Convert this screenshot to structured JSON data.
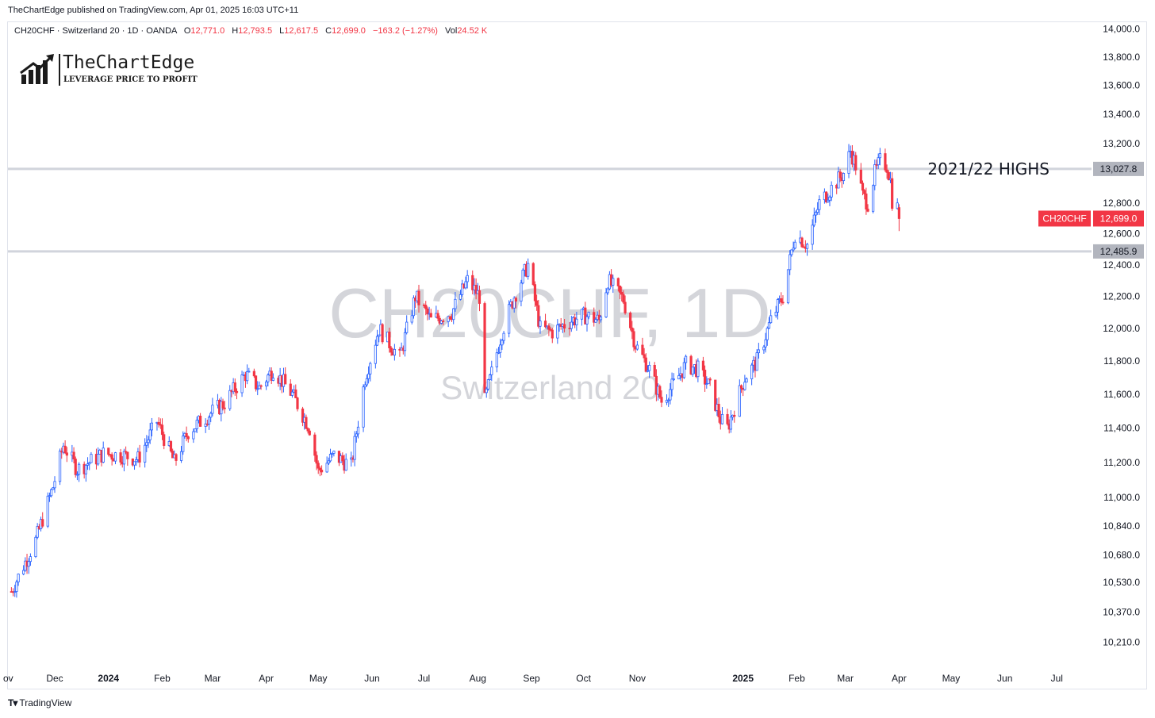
{
  "header": {
    "published": "TheChartEdge published on TradingView.com, Apr 01, 2025 16:03 UTC+11"
  },
  "legend": {
    "symbol": "CH20CHF · Switzerland 20 · 1D · OANDA",
    "o_label": "O",
    "o_value": "12,771.0",
    "h_label": "H",
    "h_value": "12,793.5",
    "l_label": "L",
    "l_value": "12,617.5",
    "c_label": "C",
    "c_value": "12,699.0",
    "change": "−163.2 (−1.27%)",
    "vol_label": "Vol",
    "vol_value": "24.52 K"
  },
  "logo": {
    "name": "TheChartEdge",
    "tagline": "LEVERAGE PRICE TO PROFIT",
    "icon": "bar-chart-arrow-icon"
  },
  "watermark": {
    "symbol": "CH20CHF, 1D",
    "name": "Switzerland 20"
  },
  "footer": {
    "brand": "TradingView",
    "icon": "tradingview-logo-icon"
  },
  "colors": {
    "up": "#2962ff",
    "down": "#f23645",
    "level_line": "#d1d4dc",
    "level_tag_bg": "#b2b5be",
    "price_tag_bg": "#f23645"
  },
  "chart_data": {
    "type": "candlestick",
    "symbol": "CH20CHF",
    "timeframe": "1D",
    "y_ticks": [
      "14,000.0",
      "13,800.0",
      "13,600.0",
      "13,400.0",
      "13,200.0",
      "12,800.0",
      "12,600.0",
      "12,400.0",
      "12,200.0",
      "12,000.0",
      "11,800.0",
      "11,600.0",
      "11,400.0",
      "11,200.0",
      "11,000.0",
      "10,840.0",
      "10,680.0",
      "10,530.0",
      "10,370.0",
      "10,210.0"
    ],
    "y_tick_values": [
      14000,
      13800,
      13600,
      13400,
      13200,
      12800,
      12600,
      12400,
      12200,
      12000,
      11800,
      11600,
      11400,
      11200,
      11000,
      10840,
      10680,
      10530,
      10370,
      10210
    ],
    "x_ticks": [
      {
        "label": "ov",
        "date": "2023-11-06",
        "bold": false
      },
      {
        "label": "Dec",
        "date": "2023-12-01",
        "bold": false
      },
      {
        "label": "2024",
        "date": "2024-01-01",
        "bold": true
      },
      {
        "label": "Feb",
        "date": "2024-02-01",
        "bold": false
      },
      {
        "label": "Mar",
        "date": "2024-03-01",
        "bold": false
      },
      {
        "label": "Apr",
        "date": "2024-04-01",
        "bold": false
      },
      {
        "label": "May",
        "date": "2024-05-01",
        "bold": false
      },
      {
        "label": "Jun",
        "date": "2024-06-01",
        "bold": false
      },
      {
        "label": "Jul",
        "date": "2024-07-01",
        "bold": false
      },
      {
        "label": "Aug",
        "date": "2024-08-01",
        "bold": false
      },
      {
        "label": "Sep",
        "date": "2024-09-01",
        "bold": false
      },
      {
        "label": "Oct",
        "date": "2024-10-01",
        "bold": false
      },
      {
        "label": "Nov",
        "date": "2024-11-01",
        "bold": false
      },
      {
        "label": "2025",
        "date": "2025-01-01",
        "bold": true
      },
      {
        "label": "Feb",
        "date": "2025-02-01",
        "bold": false
      },
      {
        "label": "Mar",
        "date": "2025-03-01",
        "bold": false
      },
      {
        "label": "Apr",
        "date": "2025-04-01",
        "bold": false
      },
      {
        "label": "May",
        "date": "2025-05-01",
        "bold": false
      },
      {
        "label": "Jun",
        "date": "2025-06-01",
        "bold": false
      },
      {
        "label": "Jul",
        "date": "2025-07-01",
        "bold": false
      }
    ],
    "levels": [
      {
        "value": 13027.8,
        "label": "13,027.8",
        "annotation": "2021/22 HIGHS"
      },
      {
        "value": 12485.9,
        "label": "12,485.9",
        "annotation": ""
      }
    ],
    "last_price": {
      "value": 12699.0,
      "label": "12,699.0",
      "symbol_tag": "CH20CHF"
    },
    "price_path": [
      [
        "2023-11-06",
        10480
      ],
      [
        "2023-11-20",
        10760
      ],
      [
        "2023-11-30",
        11060
      ],
      [
        "2023-12-06",
        11300
      ],
      [
        "2023-12-14",
        11160
      ],
      [
        "2023-12-29",
        11250
      ],
      [
        "2024-01-10",
        11240
      ],
      [
        "2024-01-18",
        11220
      ],
      [
        "2024-01-29",
        11440
      ],
      [
        "2024-02-08",
        11200
      ],
      [
        "2024-02-16",
        11380
      ],
      [
        "2024-02-28",
        11480
      ],
      [
        "2024-03-08",
        11550
      ],
      [
        "2024-03-20",
        11720
      ],
      [
        "2024-03-28",
        11640
      ],
      [
        "2024-04-05",
        11750
      ],
      [
        "2024-04-16",
        11600
      ],
      [
        "2024-04-26",
        11400
      ],
      [
        "2024-05-01",
        11150
      ],
      [
        "2024-05-10",
        11240
      ],
      [
        "2024-05-20",
        11180
      ],
      [
        "2024-05-28",
        11700
      ],
      [
        "2024-06-05",
        12000
      ],
      [
        "2024-06-17",
        11820
      ],
      [
        "2024-06-26",
        12200
      ],
      [
        "2024-07-05",
        12050
      ],
      [
        "2024-07-17",
        12100
      ],
      [
        "2024-07-26",
        12300
      ],
      [
        "2024-08-02",
        12200
      ],
      [
        "2024-08-05",
        11560
      ],
      [
        "2024-08-15",
        11980
      ],
      [
        "2024-08-22",
        12200
      ],
      [
        "2024-08-30",
        12400
      ],
      [
        "2024-09-06",
        12000
      ],
      [
        "2024-09-13",
        11980
      ],
      [
        "2024-09-24",
        12050
      ],
      [
        "2024-10-02",
        12080
      ],
      [
        "2024-10-10",
        12050
      ],
      [
        "2024-10-15",
        12300
      ],
      [
        "2024-10-24",
        12180
      ],
      [
        "2024-10-31",
        11900
      ],
      [
        "2024-11-08",
        11750
      ],
      [
        "2024-11-15",
        11560
      ],
      [
        "2024-11-22",
        11660
      ],
      [
        "2024-11-29",
        11780
      ],
      [
        "2024-12-06",
        11750
      ],
      [
        "2024-12-13",
        11640
      ],
      [
        "2024-12-19",
        11450
      ],
      [
        "2024-12-23",
        11400
      ],
      [
        "2025-01-02",
        11700
      ],
      [
        "2025-01-09",
        11800
      ],
      [
        "2025-01-17",
        12050
      ],
      [
        "2025-01-24",
        12200
      ],
      [
        "2025-01-31",
        12600
      ],
      [
        "2025-02-07",
        12530
      ],
      [
        "2025-02-14",
        12800
      ],
      [
        "2025-02-21",
        12900
      ],
      [
        "2025-02-28",
        13000
      ],
      [
        "2025-03-04",
        13150
      ],
      [
        "2025-03-07",
        13050
      ],
      [
        "2025-03-11",
        12850
      ],
      [
        "2025-03-14",
        12800
      ],
      [
        "2025-03-18",
        13000
      ],
      [
        "2025-03-21",
        13080
      ],
      [
        "2025-03-25",
        13050
      ],
      [
        "2025-03-27",
        12950
      ],
      [
        "2025-03-28",
        12820
      ],
      [
        "2025-03-31",
        12771
      ],
      [
        "2025-04-01",
        12699
      ]
    ],
    "last_bar": {
      "date": "2025-04-01",
      "open": 12771.0,
      "high": 12793.5,
      "low": 12617.5,
      "close": 12699.0
    },
    "x_range": [
      "2023-11-04",
      "2025-07-21"
    ],
    "y_range": [
      10100,
      14050
    ],
    "scale": "log"
  }
}
